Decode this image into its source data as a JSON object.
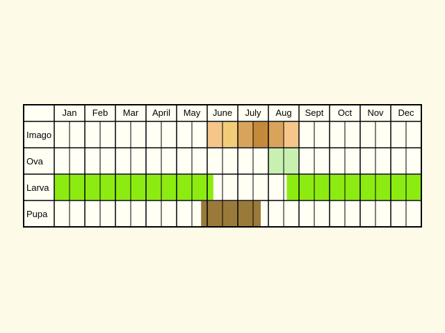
{
  "months": [
    "Jan",
    "Feb",
    "Mar",
    "April",
    "May",
    "June",
    "July",
    "Aug",
    "Sept",
    "Oct",
    "Nov",
    "Dec"
  ],
  "stages": [
    {
      "label": "Imago",
      "bars": [
        {
          "from": 5.0,
          "to": 5.5,
          "color": "#f5c58a"
        },
        {
          "from": 5.5,
          "to": 6.0,
          "color": "#f3cc7a"
        },
        {
          "from": 6.0,
          "to": 6.5,
          "color": "#d9a35c"
        },
        {
          "from": 6.5,
          "to": 7.0,
          "color": "#c48a3a"
        },
        {
          "from": 7.0,
          "to": 7.5,
          "color": "#d9a35c"
        },
        {
          "from": 7.5,
          "to": 8.0,
          "color": "#f5c58a"
        }
      ]
    },
    {
      "label": "Ova",
      "bars": [
        {
          "from": 7.0,
          "to": 8.0,
          "color": "#c8f0b0"
        }
      ]
    },
    {
      "label": "Larva",
      "bars": [
        {
          "from": 0.0,
          "to": 5.2,
          "color": "#8ceb10"
        },
        {
          "from": 7.6,
          "to": 12.0,
          "color": "#8ceb10"
        }
      ]
    },
    {
      "label": "Pupa",
      "bars": [
        {
          "from": 4.8,
          "to": 6.75,
          "color": "#9a7a3a"
        }
      ]
    }
  ],
  "colors": {
    "background": "#fdfbe8",
    "cell": "#fffff4",
    "grid": "#000000"
  }
}
